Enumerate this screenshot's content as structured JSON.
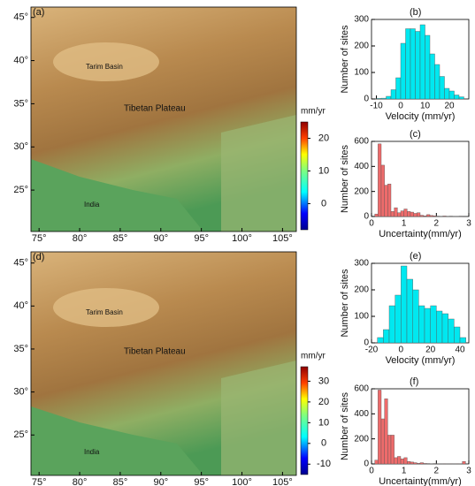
{
  "chart_data": [
    {
      "type": "map",
      "panel": "(a)",
      "annotations": [
        "Tarim Basin",
        "Tibetan Plateau",
        "India"
      ],
      "xlim": [
        74,
        106.7
      ],
      "ylim": [
        20.2,
        46.2
      ],
      "xticks": [
        {
          "value": 75,
          "label": "75°"
        },
        {
          "value": 80,
          "label": "80°"
        },
        {
          "value": 85,
          "label": "85°"
        },
        {
          "value": 90,
          "label": "90°"
        },
        {
          "value": 95,
          "label": "95°"
        },
        {
          "value": 100,
          "label": "100°"
        },
        {
          "value": 105,
          "label": "105°"
        }
      ],
      "yticks": [
        {
          "value": 25,
          "label": "25°"
        },
        {
          "value": 30,
          "label": "30°"
        },
        {
          "value": 35,
          "label": "35°"
        },
        {
          "value": 40,
          "label": "40°"
        },
        {
          "value": 45,
          "label": "45°"
        }
      ],
      "colorbar": {
        "label": "mm/yr",
        "lim": [
          -8,
          25
        ],
        "ticks": [
          0,
          10,
          20
        ]
      }
    },
    {
      "type": "histogram",
      "panel": "(b)",
      "xlabel": "Velocity (mm/yr)",
      "ylabel": "Number of sites",
      "color": "#00e8f0",
      "bins": [
        -10,
        -8,
        -6,
        -4,
        -2,
        0,
        2,
        4,
        6,
        8,
        10,
        12,
        14,
        16,
        18,
        20,
        22,
        24,
        26
      ],
      "values": [
        2,
        3,
        10,
        35,
        80,
        210,
        265,
        265,
        255,
        280,
        240,
        170,
        130,
        85,
        40,
        30,
        15,
        8
      ],
      "xlim": [
        -12,
        28
      ],
      "ylim": [
        0,
        300
      ],
      "xticks": [
        -10,
        0,
        10,
        20
      ],
      "yticks": [
        0,
        100,
        200,
        300
      ]
    },
    {
      "type": "histogram",
      "panel": "(c)",
      "xlabel": "Uncertainty(mm/yr)",
      "ylabel": "Number of sites",
      "color": "#ee6b6b",
      "bins": [
        0.1,
        0.2,
        0.3,
        0.4,
        0.5,
        0.6,
        0.7,
        0.8,
        0.9,
        1.0,
        1.1,
        1.2,
        1.3,
        1.4,
        1.5,
        1.6,
        1.7,
        1.8,
        1.9,
        2.0,
        2.1,
        2.2,
        2.3,
        2.4,
        2.5,
        2.6,
        2.7,
        2.8
      ],
      "values": [
        20,
        580,
        410,
        250,
        260,
        40,
        70,
        30,
        45,
        60,
        40,
        35,
        25,
        30,
        10,
        5,
        15,
        8,
        5,
        3,
        2,
        4,
        2,
        3,
        2,
        2,
        3
      ],
      "xlim": [
        0,
        3
      ],
      "ylim": [
        0,
        600
      ],
      "xticks": [
        0,
        1,
        2,
        3
      ],
      "yticks": [
        0,
        200,
        400,
        600
      ]
    },
    {
      "type": "map",
      "panel": "(d)",
      "annotations": [
        "Tarim Basin",
        "Tibetan Plateau",
        "India"
      ],
      "xlim": [
        74,
        106.7
      ],
      "ylim": [
        20.3,
        46.3
      ],
      "xticks": [
        {
          "value": 75,
          "label": "75°"
        },
        {
          "value": 80,
          "label": "80°"
        },
        {
          "value": 85,
          "label": "85°"
        },
        {
          "value": 90,
          "label": "90°"
        },
        {
          "value": 95,
          "label": "95°"
        },
        {
          "value": 100,
          "label": "100°"
        },
        {
          "value": 105,
          "label": "105°"
        }
      ],
      "yticks": [
        {
          "value": 25,
          "label": "25°"
        },
        {
          "value": 30,
          "label": "30°"
        },
        {
          "value": 35,
          "label": "35°"
        },
        {
          "value": 40,
          "label": "40°"
        },
        {
          "value": 45,
          "label": "45°"
        }
      ],
      "colorbar": {
        "label": "mm/yr",
        "lim": [
          -15,
          37
        ],
        "ticks": [
          -10,
          0,
          10,
          20,
          30
        ]
      }
    },
    {
      "type": "histogram",
      "panel": "(e)",
      "xlabel": "Velocity (mm/yr)",
      "ylabel": "Number of sites",
      "color": "#00e8f0",
      "bins": [
        -16,
        -12,
        -8,
        -4,
        0,
        4,
        8,
        12,
        16,
        20,
        24,
        28,
        32,
        36,
        40,
        44
      ],
      "values": [
        20,
        50,
        140,
        180,
        290,
        240,
        200,
        140,
        130,
        140,
        120,
        110,
        90,
        60,
        20
      ],
      "xlim": [
        -20,
        46
      ],
      "ylim": [
        0,
        300
      ],
      "xticks": [
        -20,
        0,
        20,
        40
      ],
      "yticks": [
        0,
        100,
        200,
        300
      ]
    },
    {
      "type": "histogram",
      "panel": "(f)",
      "xlabel": "Uncertainty(mm/yr)",
      "ylabel": "Number of sites",
      "color": "#ee6b6b",
      "bins": [
        0.1,
        0.2,
        0.3,
        0.4,
        0.5,
        0.6,
        0.7,
        0.8,
        0.9,
        1.0,
        1.1,
        1.2,
        1.3,
        1.4,
        1.5,
        1.6,
        1.7,
        1.8,
        1.9,
        2.0,
        2.1,
        2.2,
        2.3,
        2.4,
        2.5,
        2.6,
        2.7,
        2.8,
        2.9
      ],
      "values": [
        30,
        590,
        360,
        520,
        230,
        230,
        50,
        60,
        40,
        50,
        20,
        15,
        10,
        5,
        10,
        4,
        3,
        2,
        3,
        2,
        2,
        1,
        2,
        1,
        2,
        1,
        2,
        20
      ],
      "xlim": [
        0,
        3
      ],
      "ylim": [
        0,
        600
      ],
      "xticks": [
        0,
        1,
        2,
        3
      ],
      "yticks": [
        0,
        200,
        400,
        600
      ]
    }
  ]
}
